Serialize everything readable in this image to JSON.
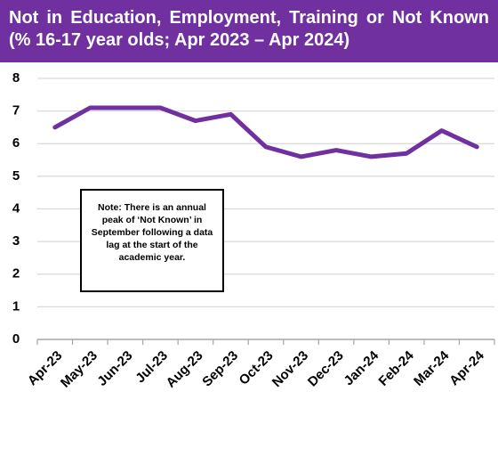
{
  "chart_data": {
    "type": "line",
    "title": "Not in Education, Employment, Training or Not Known (% 16-17 year olds; Apr 2023 – Apr 2024)",
    "annotation": "Note: There is an annual peak of ‘Not Known’ in September following a data lag at the start of the academic year.",
    "categories": [
      "Apr-23",
      "May-23",
      "Jun-23",
      "Jul-23",
      "Aug-23",
      "Sep-23",
      "Oct-23",
      "Nov-23",
      "Dec-23",
      "Jan-24",
      "Feb-24",
      "Mar-24",
      "Apr-24"
    ],
    "values": [
      6.5,
      7.1,
      7.1,
      7.1,
      6.7,
      6.9,
      5.9,
      5.6,
      5.8,
      5.6,
      5.7,
      6.4,
      5.9
    ],
    "color": "#7030a0",
    "ylim": [
      0,
      8
    ],
    "yticks": [
      0,
      1,
      2,
      3,
      4,
      5,
      6,
      7,
      8
    ],
    "grid": true
  }
}
